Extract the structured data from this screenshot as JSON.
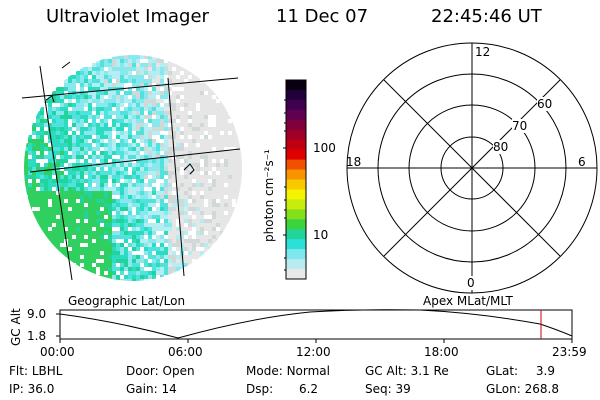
{
  "header": {
    "instrument": "Ultraviolet Imager",
    "date": "11 Dec 07",
    "time": "22:45:46 UT"
  },
  "colorbar": {
    "unit_label": "photon cm⁻²s⁻¹",
    "ticks": [
      "100",
      "10"
    ],
    "colors": [
      "#e8e8e8",
      "#b8ecf0",
      "#7fe8ee",
      "#2ce0d8",
      "#20d49a",
      "#3cd43c",
      "#84e01c",
      "#c8ec0c",
      "#f4f400",
      "#f8c800",
      "#f89400",
      "#f05000",
      "#e00000",
      "#c00010",
      "#a00028",
      "#80003c",
      "#600050",
      "#400050",
      "#200038",
      "#080010"
    ]
  },
  "geographic_view": {
    "label": "Geographic Lat/Lon",
    "disk_colors": [
      "#e6e6e6",
      "#d0d8d8",
      "#b4eef2",
      "#88e8ee",
      "#50e2dc",
      "#2cdcc0",
      "#22d49c",
      "#30d060"
    ]
  },
  "polar_view": {
    "label": "Apex MLat/MLT",
    "mlt_labels": {
      "top": "12",
      "left": "18",
      "right": "6",
      "bottom": "0"
    },
    "lat_labels": [
      "60",
      "70",
      "80"
    ]
  },
  "altitude_plot": {
    "ylabel": "GC Alt",
    "yticks": [
      "9.0",
      "1.8"
    ],
    "xticks": [
      "00:00",
      "06:00",
      "12:00",
      "18:00",
      "23:59"
    ],
    "current_time_color": "#cc0000"
  },
  "info": {
    "filter_label": "Flt:",
    "filter_value": "LBHL",
    "ip_label": "IP:",
    "ip_value": "36.0",
    "door_label": "Door:",
    "door_value": "Open",
    "gain_label": "Gain:",
    "gain_value": "14",
    "mode_label": "Mode:",
    "mode_value": "Normal",
    "dsp_label": "Dsp:",
    "dsp_value": "6.2",
    "gcalt_label": "GC Alt:",
    "gcalt_value": "3.1 Re",
    "seq_label": "Seq:",
    "seq_value": "39",
    "glat_label": "GLat:",
    "glat_value": "3.9",
    "glon_label": "GLon:",
    "glon_value": "268.8"
  }
}
